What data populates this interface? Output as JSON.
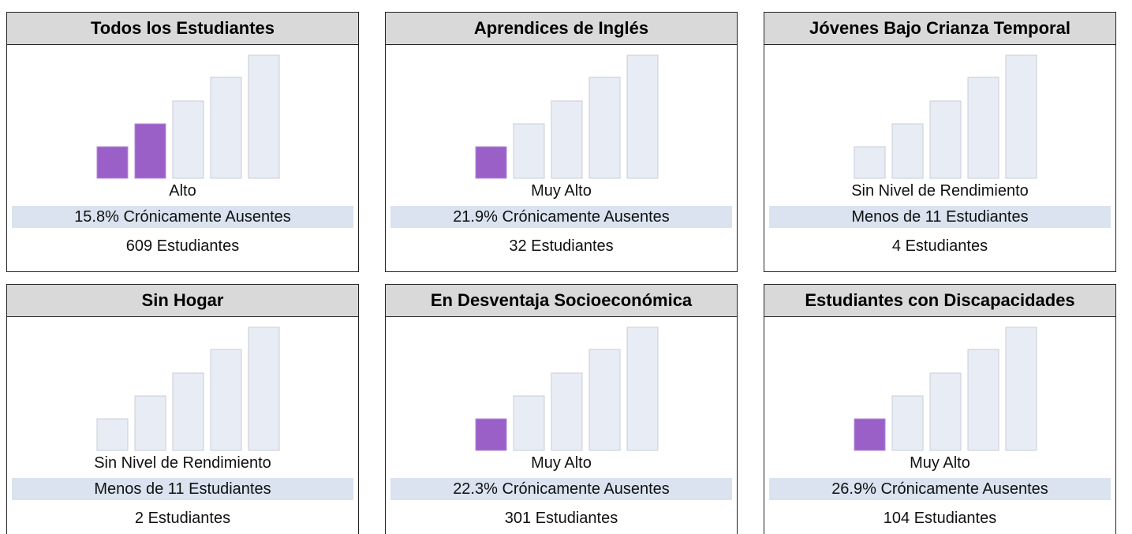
{
  "panels": [
    {
      "title": "Todos los Estudiantes",
      "level": "Alto",
      "rate": "15.8% Crónicamente Ausentes",
      "count": "609 Estudiantes",
      "filled": 2
    },
    {
      "title": "Aprendices de Inglés",
      "level": "Muy Alto",
      "rate": "21.9% Crónicamente Ausentes",
      "count": "32 Estudiantes",
      "filled": 1
    },
    {
      "title": "Jóvenes Bajo Crianza Temporal",
      "level": "Sin Nivel de Rendimiento",
      "rate": "Menos de 11 Estudiantes",
      "count": "4 Estudiantes",
      "filled": 0
    },
    {
      "title": "Sin Hogar",
      "level": "Sin Nivel de Rendimiento",
      "rate": "Menos de 11 Estudiantes",
      "count": "2 Estudiantes",
      "filled": 0
    },
    {
      "title": "En Desventaja Socioeconómica",
      "level": "Muy Alto",
      "rate": "22.3% Crónicamente Ausentes",
      "count": "301 Estudiantes",
      "filled": 1
    },
    {
      "title": "Estudiantes con Discapacidades",
      "level": "Muy Alto",
      "rate": "26.9% Crónicamente Ausentes",
      "count": "104 Estudiantes",
      "filled": 1
    }
  ]
}
